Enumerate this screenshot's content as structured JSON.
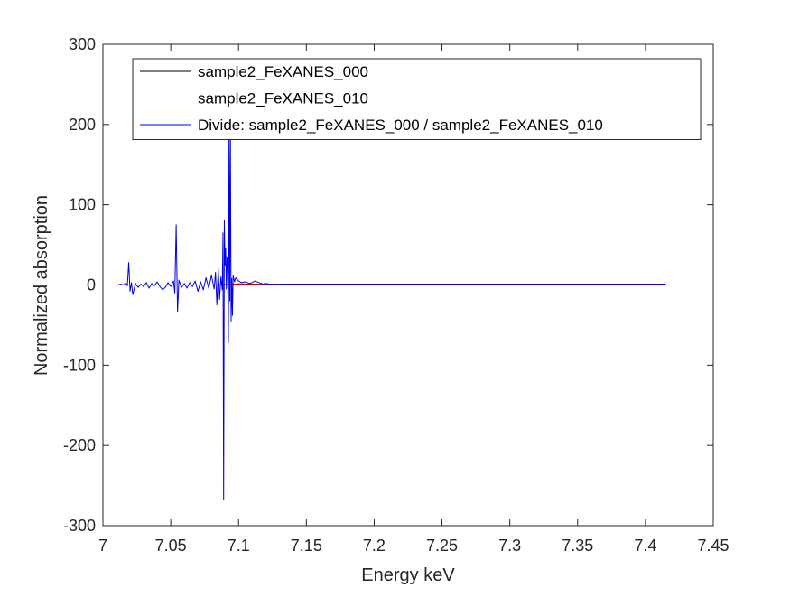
{
  "chart_data": {
    "type": "line",
    "title": "",
    "xlabel": "Energy keV",
    "ylabel": "Normalized absorption",
    "xlim": [
      7.0,
      7.45
    ],
    "ylim": [
      -300,
      300
    ],
    "xticks": [
      7.0,
      7.05,
      7.1,
      7.15,
      7.2,
      7.25,
      7.3,
      7.35,
      7.4,
      7.45
    ],
    "xtick_labels": [
      "7",
      "7.05",
      "7.1",
      "7.15",
      "7.2",
      "7.25",
      "7.3",
      "7.35",
      "7.4",
      "7.45"
    ],
    "yticks": [
      -300,
      -200,
      -100,
      0,
      100,
      200,
      300
    ],
    "ytick_labels": [
      "-300",
      "-200",
      "-100",
      "0",
      "100",
      "200",
      "300"
    ],
    "grid": false,
    "legend_position": "top-right",
    "series": [
      {
        "name": "sample2_FeXANES_000",
        "color": "#000000",
        "x": [
          7.01,
          7.02,
          7.04,
          7.06,
          7.08,
          7.085,
          7.09,
          7.095,
          7.1,
          7.105,
          7.11,
          7.115,
          7.12,
          7.13,
          7.15,
          7.2,
          7.25,
          7.3,
          7.35,
          7.4,
          7.415
        ],
        "y": [
          0.0,
          0.0,
          0.0,
          0.0,
          0.05,
          0.1,
          0.4,
          0.9,
          1.3,
          1.2,
          1.1,
          1.0,
          1.0,
          0.98,
          1.0,
          1.0,
          1.0,
          1.0,
          1.0,
          1.0,
          1.0
        ]
      },
      {
        "name": "sample2_FeXANES_010",
        "color": "#cc0000",
        "x": [
          7.01,
          7.02,
          7.04,
          7.06,
          7.08,
          7.085,
          7.09,
          7.095,
          7.1,
          7.105,
          7.11,
          7.115,
          7.12,
          7.13,
          7.15,
          7.2,
          7.25,
          7.3,
          7.35,
          7.4,
          7.415
        ],
        "y": [
          0.0,
          0.0,
          0.0,
          0.0,
          0.05,
          0.1,
          0.45,
          0.95,
          1.25,
          1.15,
          1.05,
          1.0,
          1.0,
          1.0,
          1.0,
          1.0,
          1.0,
          1.0,
          1.0,
          1.0,
          1.0
        ]
      },
      {
        "name": "Divide: sample2_FeXANES_000 / sample2_FeXANES_010",
        "color": "#0000ee",
        "x": [
          7.011,
          7.013,
          7.015,
          7.017,
          7.018,
          7.019,
          7.02,
          7.021,
          7.022,
          7.024,
          7.026,
          7.028,
          7.03,
          7.032,
          7.034,
          7.036,
          7.038,
          7.04,
          7.042,
          7.044,
          7.046,
          7.048,
          7.05,
          7.052,
          7.053,
          7.054,
          7.055,
          7.056,
          7.058,
          7.06,
          7.062,
          7.064,
          7.066,
          7.068,
          7.07,
          7.072,
          7.074,
          7.076,
          7.078,
          7.08,
          7.082,
          7.083,
          7.084,
          7.085,
          7.086,
          7.087,
          7.088,
          7.0885,
          7.089,
          7.0895,
          7.09,
          7.0905,
          7.091,
          7.0915,
          7.092,
          7.0925,
          7.093,
          7.0935,
          7.094,
          7.0945,
          7.095,
          7.0955,
          7.096,
          7.097,
          7.098,
          7.1,
          7.102,
          7.105,
          7.108,
          7.11,
          7.112,
          7.115,
          7.118,
          7.12,
          7.123,
          7.126,
          7.13,
          7.14,
          7.15,
          7.2,
          7.25,
          7.3,
          7.35,
          7.4,
          7.415
        ],
        "y": [
          0,
          1,
          0,
          2,
          -1,
          28,
          -8,
          3,
          -12,
          2,
          -3,
          1,
          -2,
          3,
          -4,
          2,
          -1,
          4,
          -2,
          -6,
          -3,
          3,
          -2,
          5,
          -10,
          75,
          -34,
          6,
          -3,
          2,
          -4,
          3,
          -2,
          5,
          -8,
          4,
          -6,
          9,
          -4,
          12,
          -5,
          16,
          -25,
          20,
          -18,
          10,
          -6,
          65,
          -268,
          80,
          25,
          45,
          -5,
          35,
          20,
          -72,
          200,
          -20,
          190,
          -45,
          8,
          -38,
          12,
          4,
          9,
          5,
          3,
          4,
          2,
          3,
          5,
          3,
          1,
          2,
          1,
          0.5,
          1,
          1,
          1,
          1,
          1,
          1,
          1,
          1,
          1
        ]
      }
    ]
  }
}
